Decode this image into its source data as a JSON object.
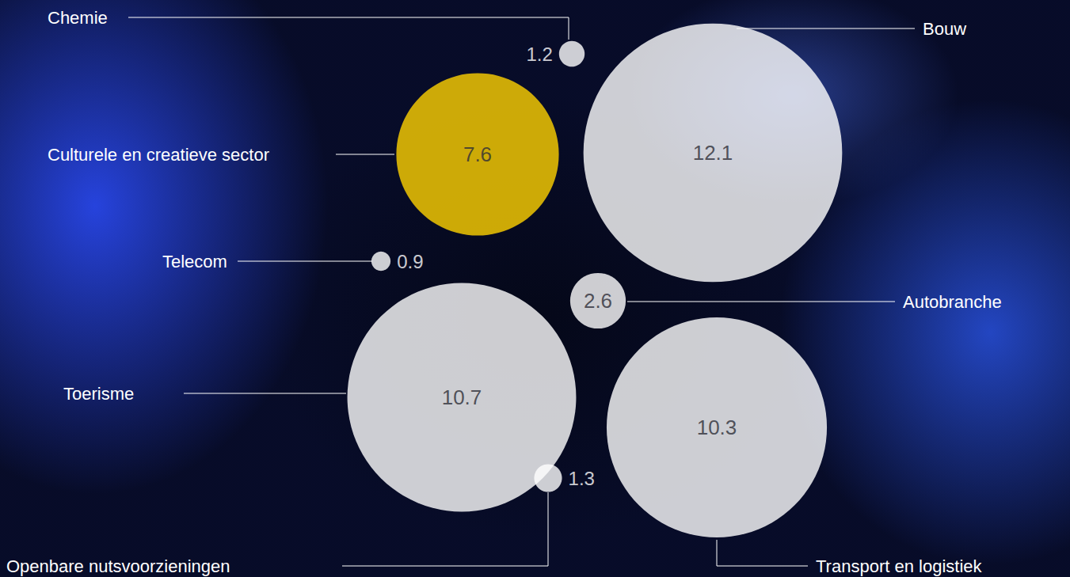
{
  "chart_data": {
    "type": "bubble",
    "categories": [
      "Chemie",
      "Bouw",
      "Culturele en creatieve sector",
      "Telecom",
      "Autobranche",
      "Toerisme",
      "Transport en logistiek",
      "Openbare nutsvoorzieningen"
    ],
    "values": [
      1.2,
      12.1,
      7.6,
      0.9,
      2.6,
      10.7,
      10.3,
      1.3
    ],
    "colors": [
      "#ffffff",
      "#ffffff",
      "#ffd200",
      "#ffffff",
      "#ffffff",
      "#ffffff",
      "#ffffff",
      "#ffffff"
    ],
    "data_labels": true,
    "tick_labels": false
  }
}
